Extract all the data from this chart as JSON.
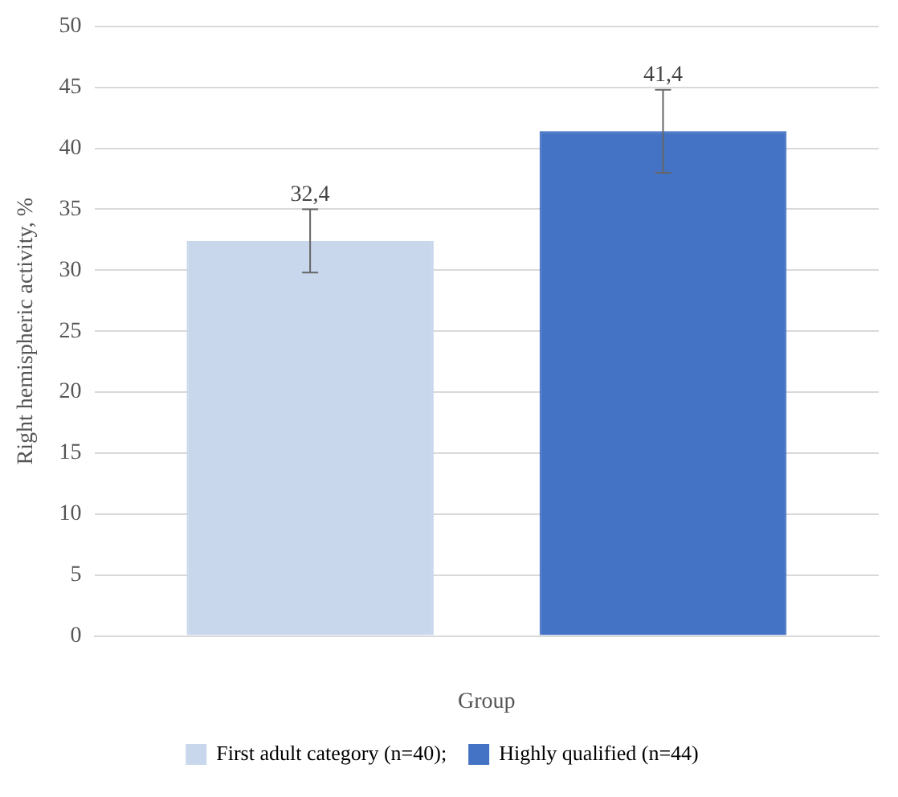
{
  "chart_data": {
    "type": "bar",
    "ylabel": "Right hemispheric activity, %",
    "xlabel": "Group",
    "categories": [
      null
    ],
    "series": [
      {
        "name": "First adult category (n=40);",
        "color": "#c9d7ec",
        "values": [
          32.4
        ],
        "errors": [
          2.6
        ],
        "value_labels": [
          "32,4"
        ]
      },
      {
        "name": "Highly qualified (n=44)",
        "color": "#4472c4",
        "values": [
          41.4
        ],
        "errors": [
          3.4
        ],
        "value_labels": [
          "41,4"
        ]
      }
    ],
    "ylim": [
      0,
      50
    ],
    "yticks": [
      0,
      5,
      10,
      15,
      20,
      25,
      30,
      35,
      40,
      45,
      50
    ],
    "grid": "y",
    "legend": "bottom"
  }
}
